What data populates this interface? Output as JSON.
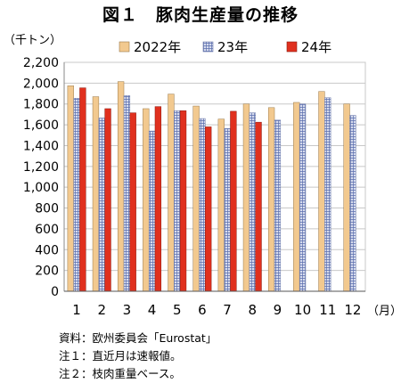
{
  "figure_title": "図１　豚肉生産量の推移",
  "notes": [
    "資料：欧州委員会「Eurostat」",
    "注１：直近月は速報値。",
    "注２：枝肉重量ベース。"
  ],
  "colors": {
    "s2022": "#f2c98f",
    "s23": "#c9d0e8",
    "s24": "#e0301e",
    "grid": "#c8c8c8",
    "axis": "#888888"
  },
  "chart_data": {
    "type": "bar",
    "ylabel": "（千トン）",
    "xlabel": "（月）",
    "categories": [
      "1",
      "2",
      "3",
      "4",
      "5",
      "6",
      "7",
      "8",
      "9",
      "10",
      "11",
      "12"
    ],
    "ylim": [
      0,
      2200
    ],
    "yticks": [
      0,
      200,
      400,
      600,
      800,
      1000,
      1200,
      1400,
      1600,
      1800,
      2000,
      2200
    ],
    "ytick_labels": [
      "0",
      "200",
      "400",
      "600",
      "800",
      "1,000",
      "1,200",
      "1,400",
      "1,600",
      "1,800",
      "2,000",
      "2,200"
    ],
    "grid": true,
    "legend_position": "top",
    "series": [
      {
        "name": "2022年",
        "values": [
          1975,
          1870,
          2015,
          1755,
          1895,
          1780,
          1655,
          1800,
          1765,
          1815,
          1920,
          1800
        ]
      },
      {
        "name": "23年",
        "values": [
          1855,
          1665,
          1880,
          1540,
          1735,
          1660,
          1565,
          1715,
          1645,
          1800,
          1860,
          1690
        ]
      },
      {
        "name": "24年",
        "values": [
          1955,
          1755,
          1715,
          1775,
          1735,
          1580,
          1730,
          1625,
          null,
          null,
          null,
          null
        ]
      }
    ]
  }
}
